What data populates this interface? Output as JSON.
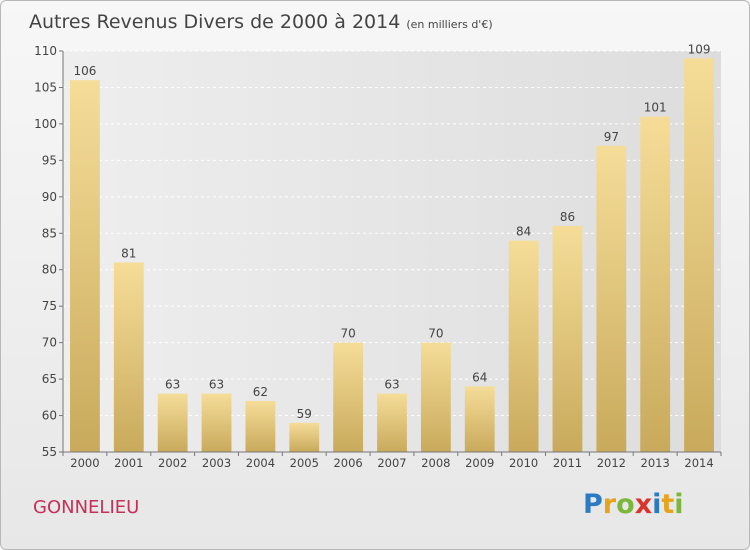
{
  "header": {
    "title": "Autres Revenus Divers de 2000 à 2014",
    "unit": "(en milliers d'€)"
  },
  "footer": {
    "place": "GONNELIEU",
    "logo_text": "Proxiti"
  },
  "colors": {
    "bar_top": "#f5dd98",
    "bar_bottom": "#c9aa5c",
    "place": "#c62f58",
    "axis_text": "#444444"
  },
  "chart_data": {
    "type": "bar",
    "title": "Autres Revenus Divers de 2000 à 2014",
    "subtitle": "(en milliers d'€)",
    "categories": [
      "2000",
      "2001",
      "2002",
      "2003",
      "2004",
      "2005",
      "2006",
      "2007",
      "2008",
      "2009",
      "2010",
      "2011",
      "2012",
      "2013",
      "2014"
    ],
    "values": [
      106,
      81,
      63,
      63,
      62,
      59,
      70,
      63,
      70,
      64,
      84,
      86,
      97,
      101,
      109
    ],
    "ylim": [
      55,
      110
    ],
    "yticks": [
      55,
      60,
      65,
      70,
      75,
      80,
      85,
      90,
      95,
      100,
      105,
      110
    ],
    "grid": true,
    "legend": "none"
  }
}
